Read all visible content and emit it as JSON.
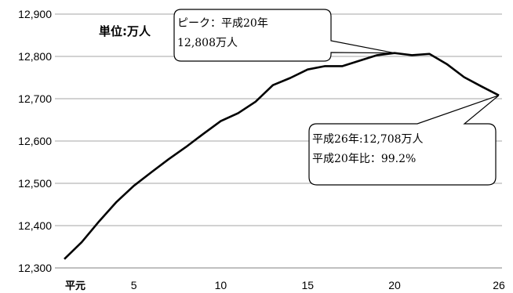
{
  "chart_data": {
    "type": "line",
    "unit_label": "単位:万人",
    "ylim": [
      12300,
      12900
    ],
    "y_ticks": [
      12300,
      12400,
      12500,
      12600,
      12700,
      12800,
      12900
    ],
    "y_tick_labels": [
      "12,300",
      "12,400",
      "12,500",
      "12,600",
      "12,700",
      "12,800",
      "12,900"
    ],
    "grid": true,
    "x_ticks": [
      {
        "x": 1,
        "label": "平元"
      },
      {
        "x": 5,
        "label": "5"
      },
      {
        "x": 10,
        "label": "10"
      },
      {
        "x": 15,
        "label": "15"
      },
      {
        "x": 20,
        "label": "20"
      },
      {
        "x": 26,
        "label": "26"
      }
    ],
    "series": [
      {
        "x": [
          1,
          2,
          3,
          4,
          5,
          6,
          7,
          8,
          9,
          10,
          11,
          12,
          13,
          14,
          15,
          16,
          17,
          18,
          19,
          20,
          21,
          22,
          23,
          24,
          25,
          26
        ],
        "values": [
          12321,
          12361,
          12410,
          12456,
          12494,
          12526,
          12557,
          12586,
          12617,
          12647,
          12666,
          12693,
          12732,
          12749,
          12769,
          12777,
          12777,
          12790,
          12803,
          12808,
          12803,
          12806,
          12782,
          12751,
          12729,
          12708
        ]
      }
    ],
    "annotations": [
      {
        "lines": [
          "ピーク：平成20年",
          "12,808万人"
        ],
        "points_to_x": 20
      },
      {
        "lines": [
          "平成26年:12,708万人",
          "平成20年比：99.2%"
        ],
        "points_to_x": 26
      }
    ]
  }
}
